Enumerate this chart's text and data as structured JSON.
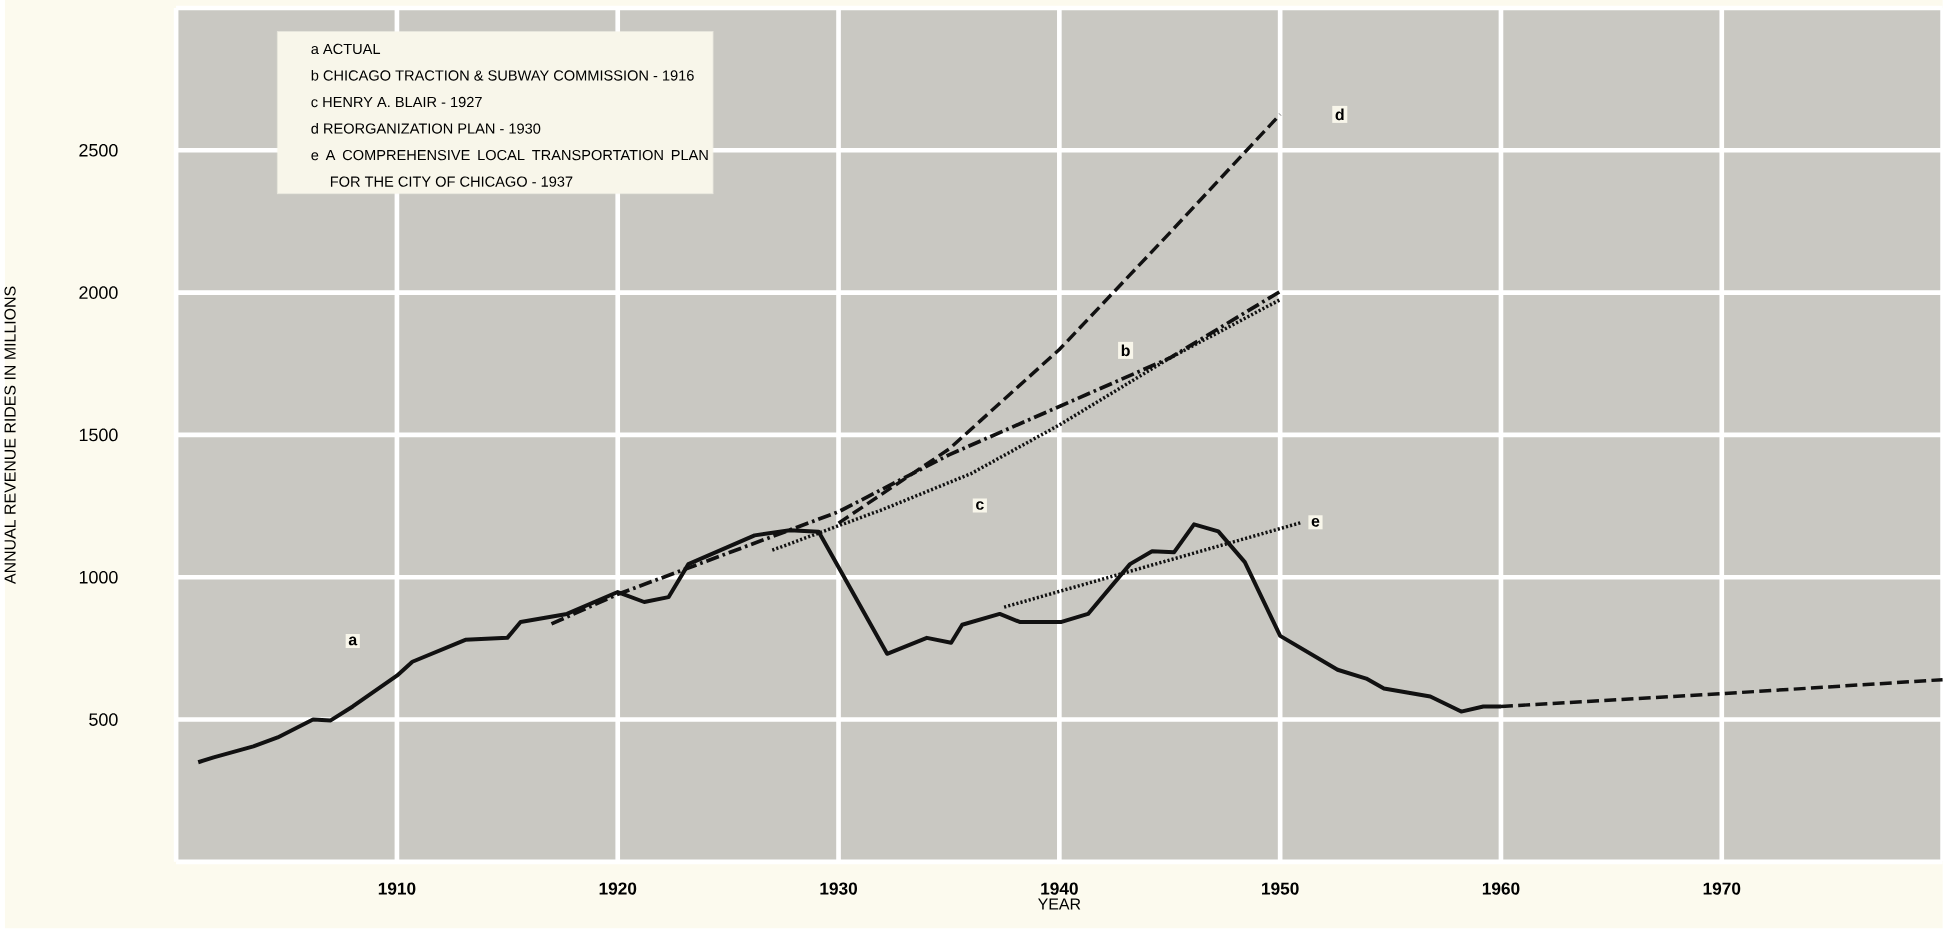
{
  "chart_data": {
    "type": "line",
    "xlabel": "YEAR",
    "ylabel": "ANNUAL REVENUE RIDES IN MILLIONS",
    "xlim": [
      1900,
      1980
    ],
    "ylim": [
      0,
      3000
    ],
    "xticks": [
      {
        "value": 1900,
        "label": null
      },
      1910,
      1920,
      1930,
      1940,
      1950,
      1960,
      1970,
      {
        "value": 1980,
        "label": null
      }
    ],
    "yticks": [
      {
        "value": 0,
        "label": null
      },
      500,
      1000,
      1500,
      2000,
      2500,
      {
        "value": 3000,
        "label": null
      }
    ],
    "grid": true,
    "marker": "none",
    "series": [
      {
        "color": "#111111",
        "line_style": "solid",
        "x": [
          1901,
          1901.7,
          1903.5,
          1904.6,
          1906.2,
          1907.0,
          1908.0,
          1910.0,
          1910.7,
          1913.1,
          1915.0,
          1915.6,
          1917.7,
          1920.0,
          1921.2,
          1922.3,
          1923.2,
          1926.2,
          1927.8,
          1929.1,
          1932.2,
          1934.0,
          1935.1,
          1935.6,
          1937.3,
          1938.2,
          1940.1,
          1941.3,
          1943.2,
          1944.2,
          1945.2,
          1946.1,
          1947.2,
          1948.4,
          1950.0,
          1952.6,
          1953.9,
          1954.7,
          1956.8,
          1958.2,
          1959.2,
          1960.0
        ],
        "values": [
          350,
          367,
          406,
          437,
          500,
          497,
          546,
          654,
          703,
          780,
          787,
          843,
          871,
          948,
          913,
          930,
          1046,
          1147,
          1165,
          1160,
          731,
          787,
          770,
          833,
          871,
          843,
          843,
          871,
          1046,
          1091,
          1088,
          1186,
          1161,
          1053,
          794,
          675,
          644,
          609,
          581,
          528,
          546,
          546
        ]
      },
      {
        "color": "#111111",
        "line_style": "dashed",
        "x": [
          1960,
          1970,
          1980
        ],
        "values": [
          546,
          591,
          640
        ]
      },
      {
        "color": "#111111",
        "line_style": "dashdot",
        "x": [
          1917,
          1920,
          1925,
          1930,
          1935,
          1940,
          1945,
          1950
        ],
        "values": [
          836,
          940,
          1085,
          1230,
          1430,
          1600,
          1770,
          2004
        ]
      },
      {
        "color": "#111111",
        "line_style": "dotted",
        "x": [
          1927,
          1932,
          1936,
          1940,
          1945,
          1950
        ],
        "values": [
          1095,
          1238,
          1364,
          1535,
          1770,
          1975
        ]
      },
      {
        "color": "#111111",
        "line_style": "dashed",
        "x": [
          1930,
          1935,
          1940,
          1945,
          1950
        ],
        "values": [
          1190,
          1450,
          1800,
          2210,
          2626
        ]
      },
      {
        "color": "#111111",
        "line_style": "dotted",
        "x": [
          1937.5,
          1951
        ],
        "values": [
          895,
          1193
        ]
      }
    ],
    "annotations": [
      "a ACTUAL",
      "b CHICAGO TRACTION & SUBWAY COMMISSION - 1916",
      "c HENRY A. BLAIR - 1927",
      "d REORGANIZATION PLAN - 1930",
      "e A COMPREHENSIVE LOCAL TRANSPORTATION PLAN FOR THE CITY OF CHICAGO - 1937",
      {
        "text": "a",
        "x": 1908,
        "y": 776
      },
      {
        "text": "b",
        "x": 1943,
        "y": 1797
      },
      {
        "text": "c",
        "x": 1936.4,
        "y": 1252
      },
      {
        "text": "d",
        "x": 1952.7,
        "y": 2626
      },
      {
        "text": "e",
        "x": 1951.6,
        "y": 1193
      }
    ]
  }
}
